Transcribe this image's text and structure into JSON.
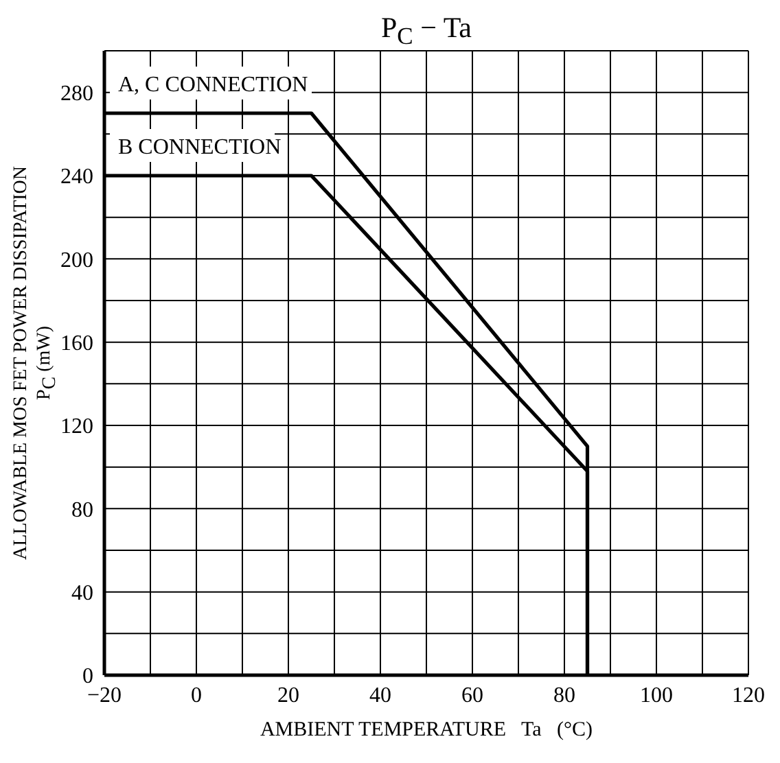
{
  "chart_data": {
    "type": "line",
    "title": "P$_{C}$ − Ta",
    "xlabel": "AMBIENT TEMPERATURE   Ta   (°C)",
    "ylabel": "ALLOWABLE MOS FET POWER DISSIPATION\nP$_{C}$  (mW)",
    "series": [
      {
        "name": "A, C CONNECTION",
        "color": "#000000",
        "x": [
          -20,
          25,
          85,
          85
        ],
        "values": [
          270,
          270,
          110,
          0
        ]
      },
      {
        "name": "B CONNECTION",
        "color": "#000000",
        "x": [
          -20,
          25,
          85,
          85
        ],
        "values": [
          240,
          240,
          98,
          0
        ]
      }
    ],
    "xlim": [
      -20,
      120
    ],
    "xticks": [
      {
        "value": -20,
        "label": "−20"
      },
      {
        "value": -10,
        "label": null
      },
      0,
      {
        "value": 10,
        "label": null
      },
      20,
      {
        "value": 30,
        "label": null
      },
      40,
      {
        "value": 50,
        "label": null
      },
      60,
      {
        "value": 70,
        "label": null
      },
      80,
      {
        "value": 90,
        "label": null
      },
      100,
      {
        "value": 110,
        "label": null
      },
      120
    ],
    "ylim": [
      0,
      300
    ],
    "yticks": [
      0,
      {
        "value": 20,
        "label": null
      },
      40,
      {
        "value": 60,
        "label": null
      },
      80,
      {
        "value": 100,
        "label": null
      },
      120,
      {
        "value": 140,
        "label": null
      },
      160,
      {
        "value": 180,
        "label": null
      },
      200,
      {
        "value": 220,
        "label": null
      },
      240,
      {
        "value": 260,
        "label": null
      },
      280,
      {
        "value": 300,
        "label": null
      }
    ],
    "grid": true,
    "marker": "none",
    "line_style": "solid"
  }
}
